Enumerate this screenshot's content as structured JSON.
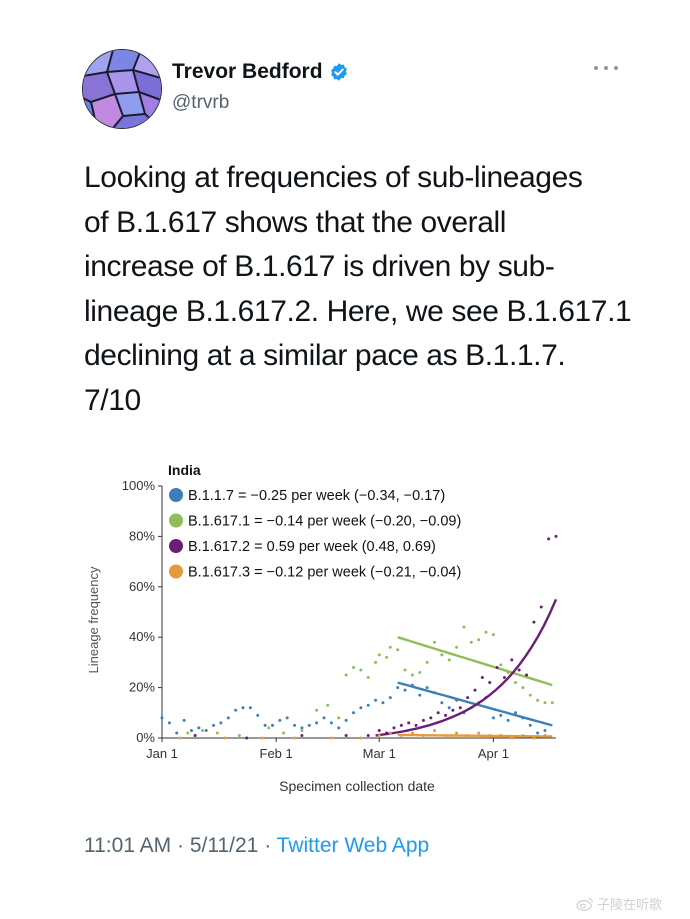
{
  "tweet": {
    "display_name": "Trevor Bedford",
    "handle": "@trvrb",
    "text_lines": [
      "Looking at frequencies of sub-lineages",
      "of B.1.617 shows that the overall",
      "increase of B.1.617 is driven by sub-",
      "lineage B.1.617.2. Here, we see B.1.617.1",
      "declining at a similar pace as B.1.1.7.",
      "7/10"
    ],
    "time": "11:01 AM",
    "date": "5/11/21",
    "separator": " · ",
    "source_app": "Twitter Web App"
  },
  "watermark": {
    "text": "子陵在听歌"
  },
  "icons": {
    "verified": "verified-badge-icon",
    "more": "more-options-icon"
  },
  "colors": {
    "link": "#1d9bf0",
    "B.1.1.7": "#3b7fb6",
    "B.1.617.1": "#8fbe56",
    "B.1.617.2": "#6c1d78",
    "B.1.617.3": "#e49a3c"
  },
  "chart_data": {
    "type": "scatter",
    "title": "India",
    "xlabel": "Specimen collection date",
    "ylabel": "Lineage frequency",
    "xlim": [
      "2021-01-01",
      "2021-04-18"
    ],
    "ylim": [
      0,
      100
    ],
    "x_ticks": [
      {
        "date": "2021-01-01",
        "label": "Jan 1"
      },
      {
        "date": "2021-02-01",
        "label": "Feb 1"
      },
      {
        "date": "2021-03-01",
        "label": "Mar 1"
      },
      {
        "date": "2021-04-01",
        "label": "Apr 1"
      }
    ],
    "y_ticks": [
      {
        "value": 0,
        "label": "0%"
      },
      {
        "value": 20,
        "label": "20%"
      },
      {
        "value": 40,
        "label": "40%"
      },
      {
        "value": 60,
        "label": "60%"
      },
      {
        "value": 80,
        "label": "80%"
      },
      {
        "value": 100,
        "label": "100%"
      }
    ],
    "legend_position": "top-left",
    "grid": false,
    "series": [
      {
        "name": "B.1.1.7",
        "color": "#3b7fb6",
        "legend": "B.1.1.7 = −0.25 per week (−0.34, −0.17)",
        "fit": {
          "from": "2021-03-06",
          "to": "2021-04-17",
          "y0": 22,
          "y1": 5
        },
        "points": [
          [
            "2021-01-01",
            8
          ],
          [
            "2021-01-03",
            6
          ],
          [
            "2021-01-05",
            2
          ],
          [
            "2021-01-07",
            7
          ],
          [
            "2021-01-09",
            3
          ],
          [
            "2021-01-11",
            4
          ],
          [
            "2021-01-13",
            3
          ],
          [
            "2021-01-15",
            5
          ],
          [
            "2021-01-17",
            6
          ],
          [
            "2021-01-19",
            8
          ],
          [
            "2021-01-21",
            11
          ],
          [
            "2021-01-23",
            12
          ],
          [
            "2021-01-25",
            12
          ],
          [
            "2021-01-27",
            9
          ],
          [
            "2021-01-29",
            5
          ],
          [
            "2021-01-31",
            5
          ],
          [
            "2021-02-02",
            7
          ],
          [
            "2021-02-04",
            8
          ],
          [
            "2021-02-06",
            5
          ],
          [
            "2021-02-08",
            4
          ],
          [
            "2021-02-10",
            5
          ],
          [
            "2021-02-12",
            6
          ],
          [
            "2021-02-14",
            8
          ],
          [
            "2021-02-16",
            6
          ],
          [
            "2021-02-18",
            4
          ],
          [
            "2021-02-20",
            7
          ],
          [
            "2021-02-22",
            10
          ],
          [
            "2021-02-24",
            12
          ],
          [
            "2021-02-26",
            13
          ],
          [
            "2021-02-28",
            15
          ],
          [
            "2021-03-02",
            14
          ],
          [
            "2021-03-04",
            16
          ],
          [
            "2021-03-06",
            20
          ],
          [
            "2021-03-08",
            19
          ],
          [
            "2021-03-10",
            21
          ],
          [
            "2021-03-12",
            17
          ],
          [
            "2021-03-14",
            20
          ],
          [
            "2021-03-16",
            18
          ],
          [
            "2021-03-18",
            14
          ],
          [
            "2021-03-20",
            12
          ],
          [
            "2021-03-22",
            15
          ],
          [
            "2021-03-24",
            10
          ],
          [
            "2021-03-26",
            12
          ],
          [
            "2021-03-28",
            14
          ],
          [
            "2021-03-30",
            16
          ],
          [
            "2021-04-01",
            8
          ],
          [
            "2021-04-03",
            9
          ],
          [
            "2021-04-05",
            7
          ],
          [
            "2021-04-07",
            10
          ],
          [
            "2021-04-09",
            8
          ],
          [
            "2021-04-11",
            5
          ],
          [
            "2021-04-13",
            2
          ],
          [
            "2021-04-15",
            3
          ]
        ]
      },
      {
        "name": "B.1.617.1",
        "color": "#8fbe56",
        "legend": "B.1.617.1 = −0.14 per week (−0.20, −0.09)",
        "fit": {
          "from": "2021-03-06",
          "to": "2021-04-17",
          "y0": 40,
          "y1": 21
        },
        "points": [
          [
            "2021-01-08",
            2
          ],
          [
            "2021-01-12",
            3
          ],
          [
            "2021-01-16",
            2
          ],
          [
            "2021-01-22",
            1
          ],
          [
            "2021-01-30",
            4
          ],
          [
            "2021-02-03",
            2
          ],
          [
            "2021-02-08",
            3
          ],
          [
            "2021-02-12",
            11
          ],
          [
            "2021-02-15",
            13
          ],
          [
            "2021-02-18",
            8
          ],
          [
            "2021-02-20",
            25
          ],
          [
            "2021-02-22",
            28
          ],
          [
            "2021-02-24",
            27
          ],
          [
            "2021-02-26",
            24
          ],
          [
            "2021-02-28",
            30
          ],
          [
            "2021-03-01",
            33
          ],
          [
            "2021-03-03",
            32
          ],
          [
            "2021-03-04",
            36
          ],
          [
            "2021-03-06",
            35
          ],
          [
            "2021-03-08",
            27
          ],
          [
            "2021-03-10",
            25
          ],
          [
            "2021-03-12",
            26
          ],
          [
            "2021-03-14",
            30
          ],
          [
            "2021-03-16",
            38
          ],
          [
            "2021-03-18",
            33
          ],
          [
            "2021-03-20",
            31
          ],
          [
            "2021-03-22",
            36
          ],
          [
            "2021-03-24",
            44
          ],
          [
            "2021-03-26",
            38
          ],
          [
            "2021-03-28",
            39
          ],
          [
            "2021-03-30",
            42
          ],
          [
            "2021-04-01",
            41
          ],
          [
            "2021-04-03",
            29
          ],
          [
            "2021-04-05",
            26
          ],
          [
            "2021-04-07",
            22
          ],
          [
            "2021-04-09",
            20
          ],
          [
            "2021-04-11",
            17
          ],
          [
            "2021-04-13",
            15
          ],
          [
            "2021-04-15",
            14
          ],
          [
            "2021-04-17",
            14
          ]
        ]
      },
      {
        "name": "B.1.617.2",
        "color": "#6c1d78",
        "legend": "B.1.617.2 = 0.59 per week (0.48, 0.69)",
        "fit": {
          "from": "2021-02-28",
          "to": "2021-04-18",
          "y0": 1,
          "y1": 55,
          "shape": "logistic"
        },
        "points": [
          [
            "2021-01-10",
            1
          ],
          [
            "2021-01-24",
            0
          ],
          [
            "2021-02-08",
            1
          ],
          [
            "2021-02-20",
            1
          ],
          [
            "2021-02-26",
            1
          ],
          [
            "2021-03-01",
            3
          ],
          [
            "2021-03-03",
            2
          ],
          [
            "2021-03-05",
            4
          ],
          [
            "2021-03-07",
            5
          ],
          [
            "2021-03-09",
            6
          ],
          [
            "2021-03-11",
            5
          ],
          [
            "2021-03-13",
            7
          ],
          [
            "2021-03-15",
            8
          ],
          [
            "2021-03-17",
            10
          ],
          [
            "2021-03-19",
            9
          ],
          [
            "2021-03-21",
            11
          ],
          [
            "2021-03-23",
            12
          ],
          [
            "2021-03-25",
            16
          ],
          [
            "2021-03-27",
            19
          ],
          [
            "2021-03-29",
            24
          ],
          [
            "2021-03-31",
            22
          ],
          [
            "2021-04-02",
            28
          ],
          [
            "2021-04-04",
            24
          ],
          [
            "2021-04-06",
            31
          ],
          [
            "2021-04-08",
            27
          ],
          [
            "2021-04-10",
            25
          ],
          [
            "2021-04-12",
            46
          ],
          [
            "2021-04-14",
            52
          ],
          [
            "2021-04-16",
            79
          ],
          [
            "2021-04-18",
            80
          ]
        ]
      },
      {
        "name": "B.1.617.3",
        "color": "#e49a3c",
        "legend": "B.1.617.3 = −0.12 per week (−0.21, −0.04)",
        "fit": {
          "from": "2021-03-06",
          "to": "2021-04-17",
          "y0": 1.2,
          "y1": 0.6
        },
        "points": [
          [
            "2021-01-06",
            0
          ],
          [
            "2021-01-18",
            0
          ],
          [
            "2021-01-28",
            0
          ],
          [
            "2021-02-06",
            0
          ],
          [
            "2021-02-16",
            0
          ],
          [
            "2021-02-24",
            0
          ],
          [
            "2021-03-01",
            1
          ],
          [
            "2021-03-04",
            2
          ],
          [
            "2021-03-07",
            1
          ],
          [
            "2021-03-10",
            2
          ],
          [
            "2021-03-13",
            1
          ],
          [
            "2021-03-16",
            3
          ],
          [
            "2021-03-19",
            1
          ],
          [
            "2021-03-22",
            2
          ],
          [
            "2021-03-25",
            1
          ],
          [
            "2021-03-28",
            2
          ],
          [
            "2021-03-31",
            1
          ],
          [
            "2021-04-03",
            1
          ],
          [
            "2021-04-06",
            0
          ],
          [
            "2021-04-09",
            1
          ],
          [
            "2021-04-12",
            0
          ],
          [
            "2021-04-15",
            1
          ]
        ]
      }
    ]
  }
}
